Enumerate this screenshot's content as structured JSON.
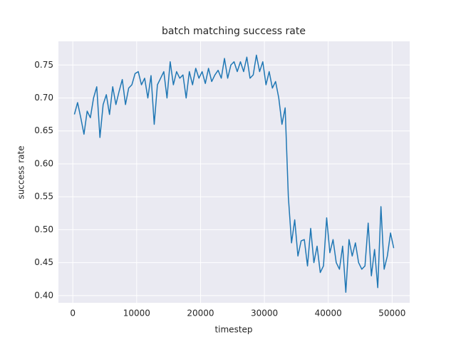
{
  "chart_data": {
    "type": "line",
    "title": "batch matching success rate",
    "xlabel": "timestep",
    "ylabel": "success rate",
    "x": [
      250,
      750,
      1250,
      1750,
      2250,
      2750,
      3250,
      3750,
      4250,
      4750,
      5250,
      5750,
      6250,
      6750,
      7250,
      7750,
      8250,
      8750,
      9250,
      9750,
      10250,
      10750,
      11250,
      11750,
      12250,
      12750,
      13250,
      13750,
      14250,
      14750,
      15250,
      15750,
      16250,
      16750,
      17250,
      17750,
      18250,
      18750,
      19250,
      19750,
      20250,
      20750,
      21250,
      21750,
      22250,
      22750,
      23250,
      23750,
      24250,
      24750,
      25250,
      25750,
      26250,
      26750,
      27250,
      27750,
      28250,
      28750,
      29250,
      29750,
      30250,
      30750,
      31250,
      31750,
      32250,
      32750,
      33250,
      33750,
      34250,
      34750,
      35250,
      35750,
      36250,
      36750,
      37250,
      37750,
      38250,
      38750,
      39250,
      39750,
      40250,
      40750,
      41250,
      41750,
      42250,
      42750,
      43250,
      43750,
      44250,
      44750,
      45250,
      45750,
      46250,
      46750,
      47250,
      47750,
      48250,
      48750,
      49250,
      49750,
      50250
    ],
    "series": [
      {
        "color": "#1f77b4",
        "values": [
          0.675,
          0.693,
          0.67,
          0.645,
          0.68,
          0.67,
          0.7,
          0.717,
          0.64,
          0.69,
          0.705,
          0.675,
          0.717,
          0.69,
          0.71,
          0.728,
          0.69,
          0.715,
          0.72,
          0.737,
          0.74,
          0.72,
          0.73,
          0.7,
          0.734,
          0.66,
          0.72,
          0.73,
          0.74,
          0.7,
          0.755,
          0.72,
          0.74,
          0.73,
          0.735,
          0.7,
          0.74,
          0.72,
          0.745,
          0.73,
          0.74,
          0.722,
          0.745,
          0.725,
          0.735,
          0.742,
          0.73,
          0.76,
          0.73,
          0.75,
          0.755,
          0.74,
          0.755,
          0.74,
          0.762,
          0.73,
          0.735,
          0.765,
          0.74,
          0.755,
          0.72,
          0.74,
          0.715,
          0.725,
          0.7,
          0.66,
          0.685,
          0.55,
          0.48,
          0.515,
          0.46,
          0.483,
          0.485,
          0.445,
          0.502,
          0.45,
          0.475,
          0.435,
          0.445,
          0.518,
          0.465,
          0.485,
          0.45,
          0.44,
          0.475,
          0.405,
          0.485,
          0.46,
          0.48,
          0.45,
          0.44,
          0.445,
          0.51,
          0.43,
          0.47,
          0.412,
          0.535,
          0.44,
          0.46,
          0.495,
          0.472
        ]
      }
    ],
    "xlim": [
      -2250,
      52750
    ],
    "ylim": [
      0.389,
      0.786
    ],
    "xticks": [
      0,
      10000,
      20000,
      30000,
      40000,
      50000
    ],
    "yticks": [
      {
        "value": 0.4,
        "label": "0.40"
      },
      0.45,
      {
        "value": 0.5,
        "label": "0.50"
      },
      0.55,
      {
        "value": 0.6,
        "label": "0.60"
      },
      0.65,
      {
        "value": 0.7,
        "label": "0.70"
      },
      0.75
    ],
    "grid": true
  }
}
